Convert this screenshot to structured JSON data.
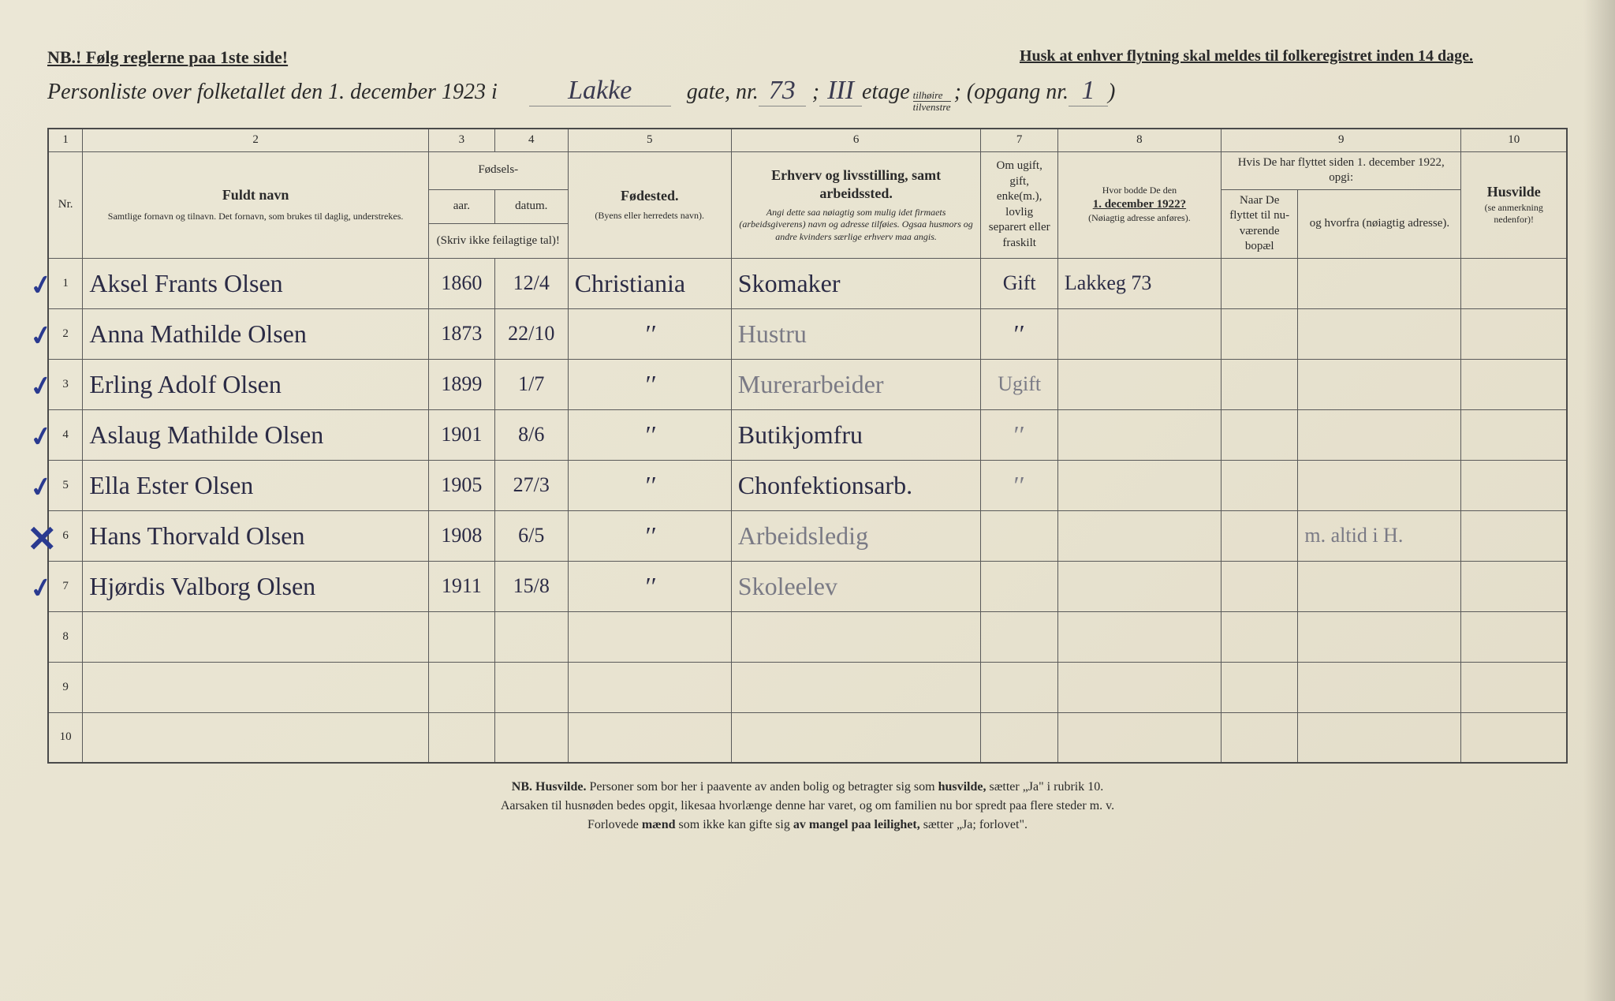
{
  "notices": {
    "nb": "NB.! Følg reglerne paa 1ste side!",
    "husk": "Husk at enhver flytning skal meldes til folkeregistret inden 14 dage."
  },
  "title": {
    "prefix": "Personliste over folketallet den 1. december 1923 i",
    "street": "Lakke",
    "gate_label": "gate, nr.",
    "gate_nr": "73",
    "sep": ";",
    "etage_nr": "III",
    "etage_label": "etage",
    "fraction_top": "tilhøire",
    "fraction_bottom": "tilvenstre",
    "opgang_label": "; (opgang nr.",
    "opgang_nr": "1",
    "close": ")"
  },
  "columns": {
    "c1": "1",
    "c2": "2",
    "c3": "3",
    "c4": "4",
    "c5": "5",
    "c6": "6",
    "c7": "7",
    "c8": "8",
    "c9": "9",
    "c10": "10",
    "nr": "Nr.",
    "fuldt_navn": "Fuldt navn",
    "fuldt_navn_sub": "Samtlige fornavn og tilnavn. Det fornavn, som brukes til daglig, understrekes.",
    "fodsels": "Fødsels-",
    "aar": "aar.",
    "datum": "datum.",
    "skriv_ikke": "(Skriv ikke feilagtige tal)!",
    "fodested": "Fødested.",
    "fodested_sub": "(Byens eller herredets navn).",
    "erhverv": "Erhverv og livsstilling, samt arbeidssted.",
    "erhverv_sub": "Angi dette saa nøiagtig som mulig idet firmaets (arbeidsgiverens) navn og adresse tilføies. Ogsaa husmors og andre kvinders særlige erhverv maa angis.",
    "status": "Om ugift, gift, enke(m.), lovlig separert eller fraskilt",
    "hvor": "Hvor bodde De den",
    "hvor_date": "1. december 1922?",
    "hvor_sub": "(Nøiagtig adresse anføres).",
    "flyttet": "Hvis De har flyttet siden 1. december 1922, opgi:",
    "naar": "Naar De flyttet til nu-værende bopæl",
    "hvorfra": "og hvorfra (nøiagtig adresse).",
    "husvilde": "Husvilde",
    "husvilde_sub": "(se anmerkning nedenfor)!"
  },
  "rows": [
    {
      "nr": "1",
      "mark": "check",
      "name": "Aksel Frants Olsen",
      "year": "1860",
      "date": "12/4",
      "fodested": "Christiania",
      "erhverv": "Skomaker",
      "status": "Gift",
      "addr": "Lakkeg 73",
      "naar": "",
      "hvorfra": "",
      "husvilde": ""
    },
    {
      "nr": "2",
      "mark": "check",
      "name": "Anna Mathilde Olsen",
      "year": "1873",
      "date": "22/10",
      "fodested": "\"",
      "erhverv": "Hustru",
      "erhverv_faded": true,
      "status": "\"",
      "addr": "",
      "naar": "",
      "hvorfra": "",
      "husvilde": ""
    },
    {
      "nr": "3",
      "mark": "check",
      "name": "Erling Adolf Olsen",
      "year": "1899",
      "date": "1/7",
      "fodested": "\"",
      "erhverv": "Murerarbeider",
      "erhverv_faded": true,
      "status": "Ugift",
      "status_faded": true,
      "addr": "",
      "naar": "",
      "hvorfra": "",
      "husvilde": ""
    },
    {
      "nr": "4",
      "mark": "check",
      "name": "Aslaug Mathilde Olsen",
      "year": "1901",
      "date": "8/6",
      "fodested": "\"",
      "erhverv": "Butikjomfru",
      "status": "\"",
      "status_faded": true,
      "addr": "",
      "naar": "",
      "hvorfra": "",
      "husvilde": ""
    },
    {
      "nr": "5",
      "mark": "check",
      "name": "Ella Ester Olsen",
      "year": "1905",
      "date": "27/3",
      "fodested": "\"",
      "erhverv": "Chonfektionsarb.",
      "status": "\"",
      "status_faded": true,
      "addr": "",
      "naar": "",
      "hvorfra": "",
      "husvilde": ""
    },
    {
      "nr": "6",
      "mark": "x",
      "name": "Hans Thorvald Olsen",
      "year": "1908",
      "date": "6/5",
      "fodested": "\"",
      "erhverv": "Arbeidsledig",
      "erhverv_faded": true,
      "status": "",
      "addr": "",
      "naar": "",
      "hvorfra": "m. altid i H.",
      "hvorfra_faded": true,
      "husvilde": ""
    },
    {
      "nr": "7",
      "mark": "check",
      "name": "Hjørdis Valborg Olsen",
      "year": "1911",
      "date": "15/8",
      "fodested": "\"",
      "erhverv": "Skoleelev",
      "erhverv_faded": true,
      "status": "",
      "addr": "",
      "naar": "",
      "hvorfra": "",
      "husvilde": ""
    },
    {
      "nr": "8"
    },
    {
      "nr": "9"
    },
    {
      "nr": "10"
    }
  ],
  "footnote": {
    "line1a": "NB. Husvilde.",
    "line1b": " Personer som bor her i paavente av anden bolig og betragter sig som ",
    "line1c": "husvilde,",
    "line1d": " sætter „Ja\" i rubrik 10.",
    "line2": "Aarsaken til husnøden bedes opgit, likesaa hvorlænge denne har varet, og om familien nu bor spredt paa flere steder m. v.",
    "line3a": "Forlovede ",
    "line3b": "mænd",
    "line3c": " som ikke kan gifte sig ",
    "line3d": "av mangel paa leilighet,",
    "line3e": " sætter „Ja; forlovet\"."
  },
  "colors": {
    "paper": "#e8e3d0",
    "ink": "#2a2a2a",
    "pen": "#2b2b45",
    "bluemark": "#2a3a90",
    "border": "#5a5a5a"
  }
}
